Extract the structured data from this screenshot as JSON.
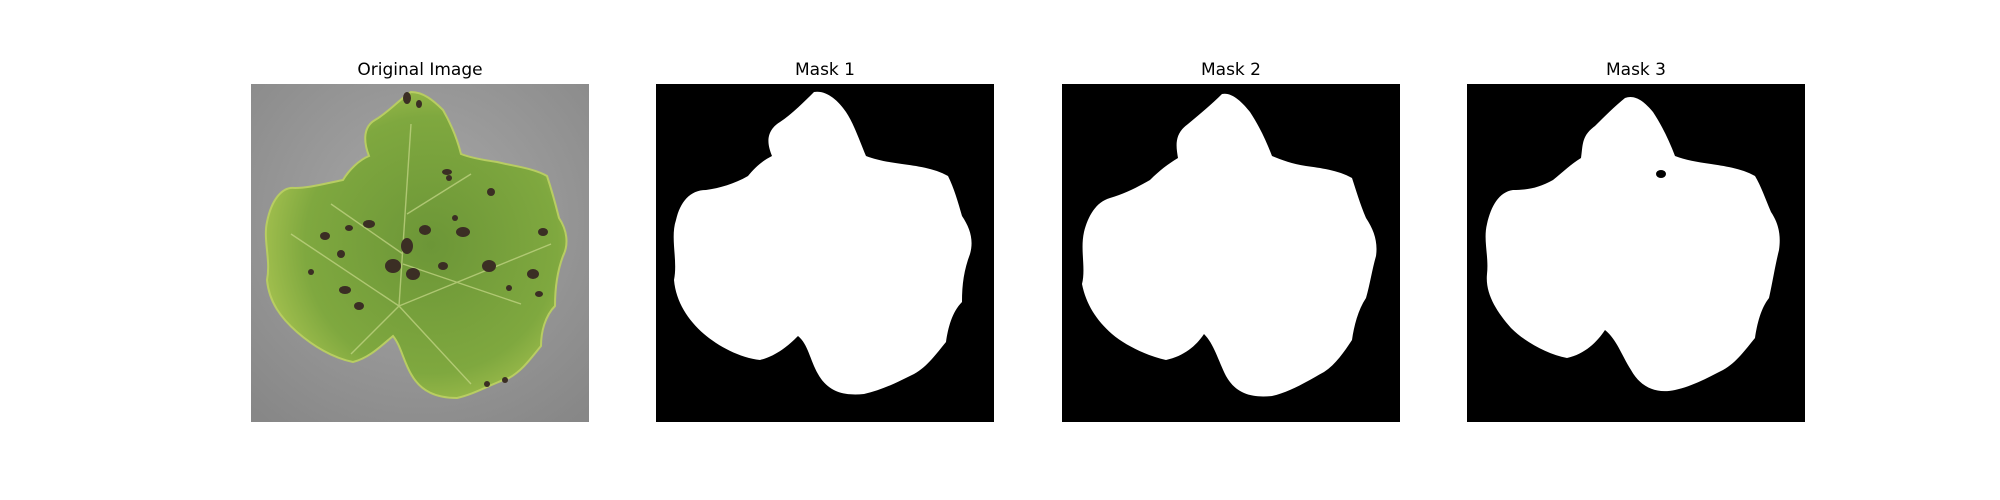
{
  "figure": {
    "panels": [
      {
        "title": "Original Image",
        "kind": "photo"
      },
      {
        "title": "Mask 1",
        "kind": "mask"
      },
      {
        "title": "Mask 2",
        "kind": "mask"
      },
      {
        "title": "Mask 3",
        "kind": "mask"
      }
    ],
    "colors": {
      "background_gray": "#9c9c9c",
      "leaf_green": "#6f9a3a",
      "leaf_light": "#a3c24d",
      "lesion": "#3c2f25",
      "mask_fg": "#ffffff",
      "mask_bg": "#000000"
    }
  }
}
